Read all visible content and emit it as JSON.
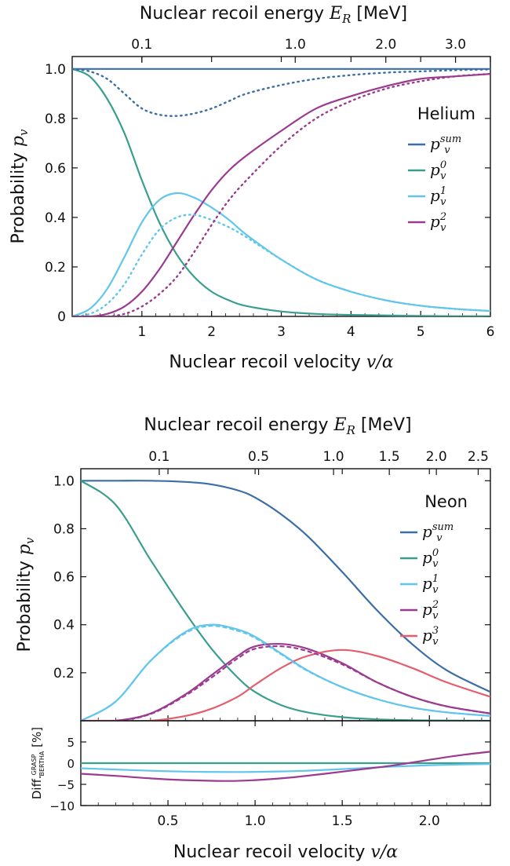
{
  "chart_data": [
    {
      "type": "line",
      "title": "",
      "legend_title": "Helium",
      "legend_position": "right",
      "xlabel_prefix": "Nuclear recoil velocity ",
      "xlabel_math": "v/α",
      "ylabel_prefix": "Probability ",
      "ylabel_math": "p",
      "ylabel_sub": "v",
      "top_axis_label_prefix": "Nuclear recoil energy ",
      "top_axis_label_math": "E",
      "top_axis_label_sub": "R",
      "top_axis_label_unit": " [MeV]",
      "xlim": [
        0,
        6
      ],
      "ylim": [
        0,
        1.05
      ],
      "x_ticks": [
        1,
        2,
        3,
        4,
        5,
        6
      ],
      "x_tick_labels": [
        "1",
        "2",
        "3",
        "4",
        "5",
        "6"
      ],
      "y_ticks": [
        0,
        0.2,
        0.4,
        0.6,
        0.8,
        1.0
      ],
      "y_tick_labels": [
        "0",
        "0.2",
        "0.4",
        "0.6",
        "0.8",
        "1.0"
      ],
      "top_ticks": [
        {
          "label": "0.1",
          "x": 1.0
        },
        {
          "label": "1.0",
          "x": 3.2
        },
        {
          "label": "2.0",
          "x": 4.5
        },
        {
          "label": "3.0",
          "x": 5.5
        }
      ],
      "x": [
        0,
        0.25,
        0.5,
        0.75,
        1.0,
        1.25,
        1.5,
        1.75,
        2.0,
        2.25,
        2.5,
        3.0,
        3.5,
        4.0,
        4.5,
        5.0,
        5.5,
        6.0
      ],
      "series": [
        {
          "name": "p_v^sum",
          "sup": "sum",
          "color": "#3a6ea5",
          "dash": "solid",
          "values": [
            1,
            1,
            1,
            1,
            1,
            1,
            1,
            1,
            1,
            1,
            1,
            1,
            1,
            1,
            1,
            1,
            1,
            1
          ]
        },
        {
          "name": "p_v^0",
          "sup": "0",
          "color": "#3a9e8f",
          "dash": "solid",
          "values": [
            1.0,
            0.97,
            0.88,
            0.74,
            0.55,
            0.38,
            0.25,
            0.16,
            0.1,
            0.065,
            0.042,
            0.02,
            0.01,
            0.006,
            0.004,
            0.002,
            0.001,
            0.001
          ]
        },
        {
          "name": "p_v^1",
          "sup": "1",
          "color": "#62c6ec",
          "dash": "solid",
          "values": [
            0.0,
            0.03,
            0.11,
            0.24,
            0.38,
            0.47,
            0.498,
            0.48,
            0.44,
            0.39,
            0.33,
            0.23,
            0.15,
            0.1,
            0.065,
            0.043,
            0.03,
            0.022
          ]
        },
        {
          "name": "p_v^2",
          "sup": "2",
          "color": "#9b3a8f",
          "dash": "solid",
          "values": [
            0.0,
            0.0,
            0.01,
            0.04,
            0.1,
            0.19,
            0.3,
            0.41,
            0.51,
            0.59,
            0.65,
            0.75,
            0.84,
            0.89,
            0.93,
            0.96,
            0.97,
            0.98
          ]
        },
        {
          "name": "p_v^sum (dotted)",
          "sup": "",
          "color": "#3a6ea5",
          "dash": "dotted",
          "in_legend": false,
          "values": [
            1.0,
            0.99,
            0.96,
            0.9,
            0.84,
            0.815,
            0.81,
            0.82,
            0.84,
            0.87,
            0.9,
            0.935,
            0.96,
            0.975,
            0.985,
            0.99,
            0.995,
            0.998
          ]
        },
        {
          "name": "p_v^1 (dotted)",
          "sup": "",
          "color": "#62c6ec",
          "dash": "dotted",
          "in_legend": false,
          "values": [
            0.0,
            0.01,
            0.05,
            0.13,
            0.25,
            0.35,
            0.4,
            0.41,
            0.39,
            0.36,
            0.32,
            0.23,
            0.15,
            0.1,
            0.065,
            0.043,
            0.03,
            0.022
          ]
        },
        {
          "name": "p_v^2 (dotted)",
          "sup": "",
          "color": "#9b3a8f",
          "dash": "dotted",
          "in_legend": false,
          "values": [
            0.0,
            0.0,
            0.0,
            0.01,
            0.04,
            0.09,
            0.16,
            0.26,
            0.37,
            0.47,
            0.55,
            0.69,
            0.8,
            0.87,
            0.92,
            0.95,
            0.97,
            0.98
          ]
        }
      ]
    },
    {
      "type": "line",
      "title": "",
      "legend_title": "Neon",
      "legend_position": "right",
      "xlabel_prefix": "Nuclear recoil velocity ",
      "xlabel_math": "v/α",
      "ylabel_prefix": "Probability ",
      "ylabel_math": "p",
      "ylabel_sub": "v",
      "top_axis_label_prefix": "Nuclear recoil energy ",
      "top_axis_label_math": "E",
      "top_axis_label_sub": "R",
      "top_axis_label_unit": " [MeV]",
      "xlim": [
        0,
        2.35
      ],
      "ylim": [
        0,
        1.05
      ],
      "x_ticks": [
        0.5,
        1.0,
        1.5,
        2.0
      ],
      "x_tick_labels": [
        "0.5",
        "1.0",
        "1.5",
        "2.0"
      ],
      "y_ticks": [
        0.2,
        0.4,
        0.6,
        0.8,
        1.0
      ],
      "y_tick_labels": [
        "0.2",
        "0.4",
        "0.6",
        "0.8",
        "1.0"
      ],
      "top_ticks": [
        {
          "label": "0.1",
          "x": 0.45
        },
        {
          "label": "0.5",
          "x": 1.02
        },
        {
          "label": "1.0",
          "x": 1.45
        },
        {
          "label": "1.5",
          "x": 1.77
        },
        {
          "label": "2.0",
          "x": 2.04
        },
        {
          "label": "2.5",
          "x": 2.28
        }
      ],
      "x": [
        0,
        0.2,
        0.4,
        0.6,
        0.75,
        0.9,
        1.0,
        1.15,
        1.3,
        1.5,
        1.7,
        1.9,
        2.1,
        2.35
      ],
      "series": [
        {
          "name": "p_v^sum",
          "sup": "sum",
          "color": "#3a6ea5",
          "dash": "solid",
          "values": [
            1.0,
            1.0,
            1.0,
            0.995,
            0.985,
            0.96,
            0.93,
            0.86,
            0.77,
            0.62,
            0.46,
            0.32,
            0.21,
            0.12
          ]
        },
        {
          "name": "p_v^0",
          "sup": "0",
          "color": "#3a9e8f",
          "dash": "solid",
          "values": [
            1.0,
            0.9,
            0.67,
            0.45,
            0.3,
            0.18,
            0.12,
            0.065,
            0.035,
            0.015,
            0.006,
            0.002,
            0.001,
            0.0
          ]
        },
        {
          "name": "p_v^1",
          "sup": "1",
          "color": "#62c6ec",
          "dash": "solid",
          "values": [
            0.0,
            0.08,
            0.25,
            0.37,
            0.4,
            0.38,
            0.35,
            0.28,
            0.21,
            0.14,
            0.09,
            0.055,
            0.035,
            0.02
          ]
        },
        {
          "name": "p_v^2",
          "sup": "2",
          "color": "#9b3a8f",
          "dash": "solid",
          "values": [
            0.0,
            0.0,
            0.03,
            0.11,
            0.19,
            0.27,
            0.31,
            0.32,
            0.3,
            0.24,
            0.16,
            0.1,
            0.06,
            0.03
          ]
        },
        {
          "name": "p_v^3",
          "sup": "3",
          "color": "#e45e6e",
          "dash": "solid",
          "values": [
            0.0,
            0.0,
            0.0,
            0.02,
            0.05,
            0.1,
            0.15,
            0.22,
            0.27,
            0.295,
            0.27,
            0.22,
            0.16,
            0.1
          ]
        },
        {
          "name": "p_v^1 (dashed)",
          "sup": "",
          "color": "#62c6ec",
          "dash": "dashed",
          "in_legend": false,
          "values": [
            0.0,
            0.08,
            0.25,
            0.365,
            0.395,
            0.375,
            0.345,
            0.277,
            0.208,
            0.14,
            0.09,
            0.055,
            0.035,
            0.02
          ]
        },
        {
          "name": "p_v^2 (dashed)",
          "sup": "",
          "color": "#9b3a8f",
          "dash": "dashed",
          "in_legend": false,
          "values": [
            0.0,
            0.0,
            0.028,
            0.105,
            0.18,
            0.26,
            0.3,
            0.31,
            0.29,
            0.235,
            0.16,
            0.1,
            0.06,
            0.03
          ]
        }
      ]
    },
    {
      "type": "line",
      "title": "",
      "xlabel_prefix": "Nuclear recoil velocity ",
      "xlabel_math": "v/α",
      "ylabel": "Diff.",
      "ylabel_sup": "GRASP",
      "ylabel_sub": "BERTHA",
      "ylabel_unit": " [%]",
      "xlim": [
        0,
        2.35
      ],
      "ylim": [
        -10,
        10
      ],
      "x_ticks": [
        0.5,
        1.0,
        1.5,
        2.0
      ],
      "x_tick_labels": [
        "0.5",
        "1.0",
        "1.5",
        "2.0"
      ],
      "y_ticks": [
        -10,
        -5,
        0,
        5
      ],
      "y_tick_labels": [
        "−10",
        "−5",
        "0",
        "5"
      ],
      "x": [
        0,
        0.2,
        0.4,
        0.6,
        0.85,
        1.0,
        1.2,
        1.4,
        1.6,
        1.8,
        2.0,
        2.2,
        2.35
      ],
      "series": [
        {
          "name": "p_v^0 diff",
          "color": "#3a9e8f",
          "dash": "solid",
          "values": [
            0,
            0,
            0,
            0,
            0,
            0,
            0,
            0,
            0,
            0,
            0,
            0,
            0
          ]
        },
        {
          "name": "p_v^1 diff",
          "color": "#62c6ec",
          "dash": "solid",
          "values": [
            -1.2,
            -1.5,
            -1.8,
            -2.0,
            -2.1,
            -2.05,
            -1.9,
            -1.6,
            -1.2,
            -0.8,
            -0.5,
            -0.3,
            -0.2
          ]
        },
        {
          "name": "p_v^2 diff",
          "color": "#9b3a8f",
          "dash": "solid",
          "values": [
            -2.5,
            -3.0,
            -3.6,
            -4.0,
            -4.2,
            -4.0,
            -3.4,
            -2.5,
            -1.5,
            -0.5,
            0.8,
            2.0,
            2.7
          ]
        }
      ]
    }
  ]
}
